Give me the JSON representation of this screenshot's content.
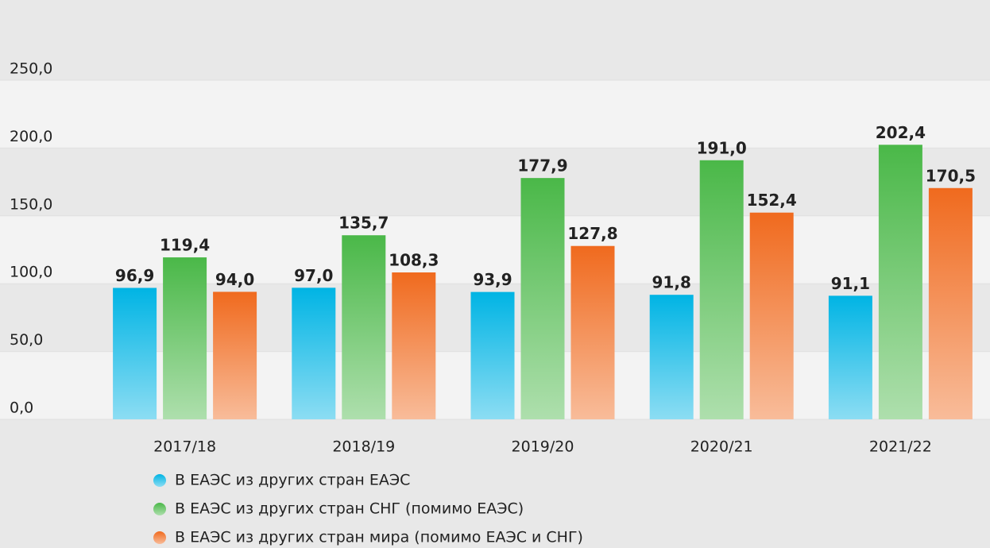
{
  "chart_data": {
    "type": "bar",
    "categories": [
      "2017/18",
      "2018/19",
      "2019/20",
      "2020/21",
      "2021/22"
    ],
    "series": [
      {
        "name": "В ЕАЭС из других стран ЕАЭС",
        "color": "#00b4e4",
        "values": [
          96.9,
          97.0,
          93.9,
          91.8,
          91.1
        ],
        "value_labels": [
          "96,9",
          "97,0",
          "93,9",
          "91,8",
          "91,1"
        ]
      },
      {
        "name": "В ЕАЭС из других стран СНГ (помимо ЕАЭС)",
        "color": "#4ab848",
        "values": [
          119.4,
          135.7,
          177.9,
          191.0,
          202.4
        ],
        "value_labels": [
          "119,4",
          "135,7",
          "177,9",
          "191,0",
          "202,4"
        ]
      },
      {
        "name": "В ЕАЭС из других стран мира (помимо ЕАЭС и СНГ)",
        "color": "#f06a1e",
        "values": [
          94.0,
          108.3,
          127.8,
          152.4,
          170.5
        ],
        "value_labels": [
          "94,0",
          "108,3",
          "127,8",
          "152,4",
          "170,5"
        ]
      }
    ],
    "ylim": [
      0,
      250
    ],
    "yticks": [
      {
        "value": 0,
        "label": "0,0"
      },
      {
        "value": 50,
        "label": "50,0"
      },
      {
        "value": 100,
        "label": "100,0"
      },
      {
        "value": 150,
        "label": "150,0"
      },
      {
        "value": 200,
        "label": "200,0"
      },
      {
        "value": 250,
        "label": "250,0"
      }
    ],
    "grid": true
  }
}
